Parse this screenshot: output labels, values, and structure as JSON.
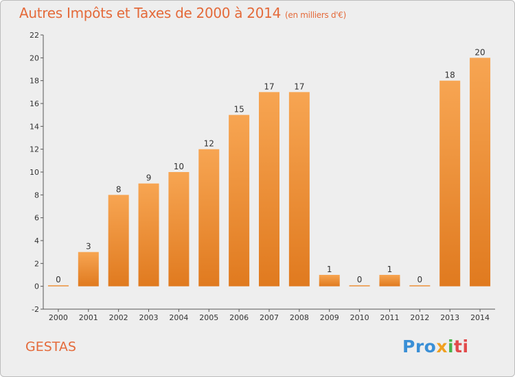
{
  "title": "Autres Impôts et Taxes de 2000 à 2014",
  "subtitle": "(en milliers d'€)",
  "place": "GESTAS",
  "logo": {
    "p1": "Pro",
    "p2": "x",
    "p3": "i",
    "p4": "ti"
  },
  "colors": {
    "bar_top": "#f7a552",
    "bar_bottom": "#e07a1f",
    "title": "#e46a3a"
  },
  "chart_data": {
    "type": "bar",
    "title": "Autres Impôts et Taxes de 2000 à 2014",
    "subtitle": "(en milliers d'€)",
    "categories": [
      "2000",
      "2001",
      "2002",
      "2003",
      "2004",
      "2005",
      "2006",
      "2007",
      "2008",
      "2009",
      "2010",
      "2011",
      "2012",
      "2013",
      "2014"
    ],
    "values": [
      0,
      3,
      8,
      9,
      10,
      12,
      15,
      17,
      17,
      1,
      0,
      1,
      0,
      18,
      20
    ],
    "xlabel": "",
    "ylabel": "",
    "ylim": [
      -2,
      22
    ],
    "yticks": [
      -2,
      0,
      2,
      4,
      6,
      8,
      10,
      12,
      14,
      16,
      18,
      20,
      22
    ],
    "grid": false,
    "legend": "none"
  }
}
